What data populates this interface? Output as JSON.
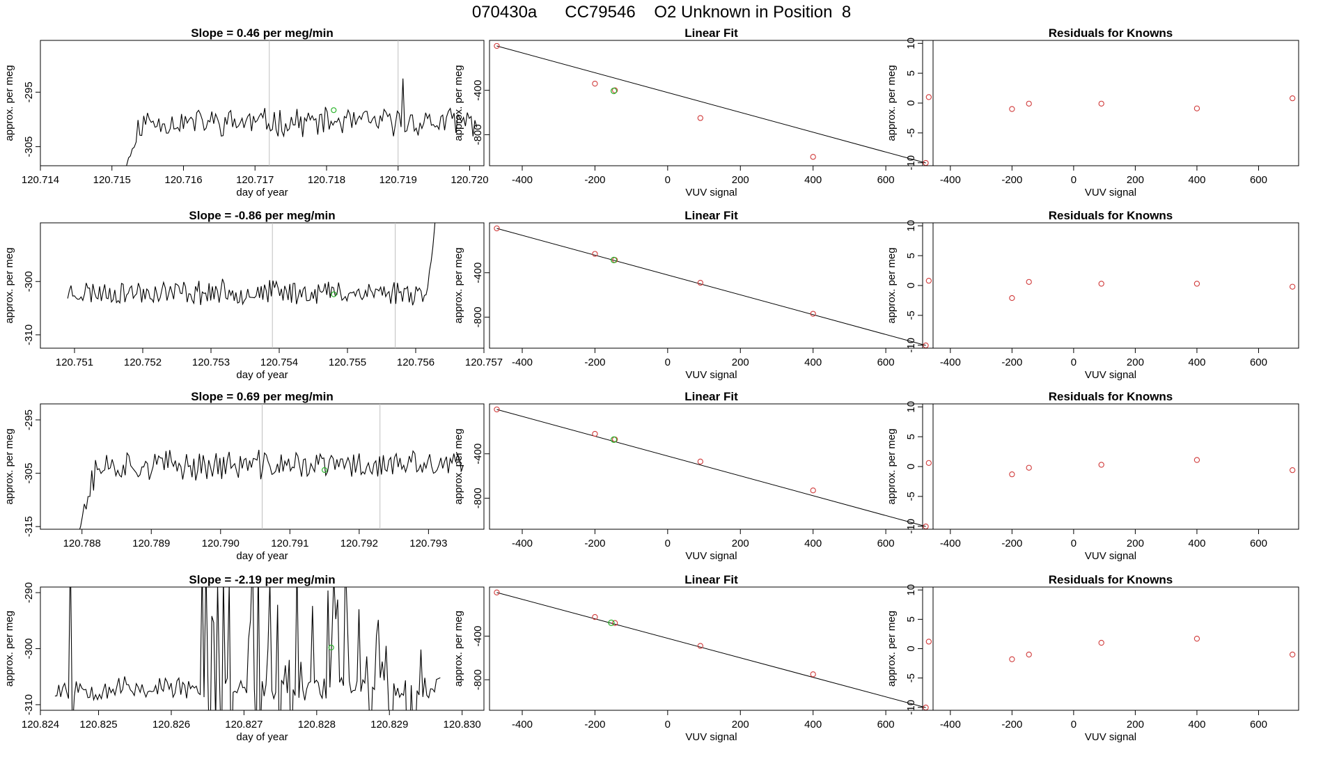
{
  "figure": {
    "title": "070430a      CC79546    O2 Unknown in Position  8",
    "colors": {
      "line": "#000000",
      "known": "#d03a3a",
      "unknown": "#2db52d",
      "vline": "#bfbfbf"
    }
  },
  "chart_data": [
    {
      "type": "line",
      "title": "Slope =  0.46  per meg/min",
      "xlabel": "day of year",
      "ylabel": "approx. per meg",
      "xlim": [
        120.714,
        120.7202
      ],
      "ylim": [
        -308.5,
        -285.5
      ],
      "xticks": [
        120.714,
        120.715,
        120.716,
        120.717,
        120.718,
        120.719,
        120.72
      ],
      "xtick_labels": [
        "120.714",
        "120.715",
        "120.716",
        "120.717",
        "120.718",
        "120.719",
        "120.720"
      ],
      "yticks": [
        -295,
        -305
      ],
      "vlines": [
        120.7172,
        120.719
      ],
      "series": {
        "start": 120.7151,
        "end": 120.7201,
        "n": 190,
        "base": -300.5,
        "noise": 2.2,
        "seed": 11,
        "ramp_from": -312,
        "ramp_len": 12,
        "spikes": [
          [
            150,
            -292.5
          ]
        ]
      },
      "unknown_point": {
        "x": 120.7181,
        "y": -298.3
      }
    },
    {
      "type": "scatter",
      "title": "Linear Fit",
      "xlabel": "VUV signal",
      "ylabel": "approx. per meg",
      "xlim": [
        -490,
        730
      ],
      "ylim": [
        -1080,
        50
      ],
      "xticks": [
        -400,
        -200,
        0,
        200,
        400,
        600
      ],
      "yticks": [
        -400,
        -800
      ],
      "line": {
        "x1": -470,
        "y1": 0,
        "x2": 710,
        "y2": -1055
      },
      "knowns": [
        [
          -470,
          0
        ],
        [
          -200,
          -340
        ],
        [
          -145,
          -400
        ],
        [
          90,
          -650
        ],
        [
          400,
          -1000
        ],
        [
          710,
          -1055
        ]
      ],
      "unknown": [
        [
          -148,
          -405
        ]
      ]
    },
    {
      "type": "scatter",
      "title": "Residuals for Knowns",
      "xlabel": "VUV signal",
      "ylabel": "approx. per meg",
      "xlim": [
        -490,
        730
      ],
      "ylim": [
        -10.5,
        10.5
      ],
      "xticks": [
        -400,
        -200,
        0,
        200,
        400,
        600
      ],
      "yticks": [
        10,
        5,
        0,
        -5,
        -10
      ],
      "points": [
        [
          -470,
          1.0
        ],
        [
          -200,
          -1.0
        ],
        [
          -145,
          -0.1
        ],
        [
          90,
          -0.1
        ],
        [
          400,
          -0.9
        ],
        [
          710,
          0.8
        ]
      ]
    },
    {
      "type": "line",
      "title": "Slope =  -0.86  per meg/min",
      "xlabel": "day of year",
      "ylabel": "approx. per meg",
      "xlim": [
        120.7505,
        120.757
      ],
      "ylim": [
        -312.5,
        -289
      ],
      "xticks": [
        120.751,
        120.752,
        120.753,
        120.754,
        120.755,
        120.756,
        120.757
      ],
      "xtick_labels": [
        "120.751",
        "120.752",
        "120.753",
        "120.754",
        "120.755",
        "120.756",
        "120.757"
      ],
      "yticks": [
        -300,
        -310
      ],
      "vlines": [
        120.7539,
        120.7557
      ],
      "series": {
        "start": 120.7509,
        "end": 120.7563,
        "n": 220,
        "base": -302,
        "noise": 2.0,
        "seed": 23,
        "tail_to": -287,
        "tail_len": 8
      },
      "unknown_point": {
        "x": 120.7548,
        "y": -302.4
      }
    },
    {
      "type": "scatter",
      "title": "Linear Fit",
      "xlabel": "VUV signal",
      "ylabel": "approx. per meg",
      "xlim": [
        -490,
        730
      ],
      "ylim": [
        -1080,
        50
      ],
      "xticks": [
        -400,
        -200,
        0,
        200,
        400,
        600
      ],
      "yticks": [
        -400,
        -800
      ],
      "line": {
        "x1": -470,
        "y1": 0,
        "x2": 710,
        "y2": -1055
      },
      "knowns": [
        [
          -470,
          0
        ],
        [
          -200,
          -230
        ],
        [
          -145,
          -285
        ],
        [
          90,
          -490
        ],
        [
          400,
          -770
        ],
        [
          710,
          -1055
        ]
      ],
      "unknown": [
        [
          -148,
          -285
        ]
      ]
    },
    {
      "type": "scatter",
      "title": "Residuals for Knowns",
      "xlabel": "VUV signal",
      "ylabel": "approx. per meg",
      "xlim": [
        -490,
        730
      ],
      "ylim": [
        -10.5,
        10.5
      ],
      "xticks": [
        -400,
        -200,
        0,
        200,
        400,
        600
      ],
      "yticks": [
        10,
        5,
        0,
        -5,
        -10
      ],
      "points": [
        [
          -470,
          0.8
        ],
        [
          -200,
          -2.1
        ],
        [
          -145,
          0.6
        ],
        [
          90,
          0.3
        ],
        [
          400,
          0.3
        ],
        [
          710,
          -0.2
        ]
      ]
    },
    {
      "type": "line",
      "title": "Slope =  0.69  per meg/min",
      "xlabel": "day of year",
      "ylabel": "approx. per meg",
      "xlim": [
        120.7874,
        120.7938
      ],
      "ylim": [
        -315.5,
        -292
      ],
      "xticks": [
        120.788,
        120.789,
        120.79,
        120.791,
        120.792,
        120.793
      ],
      "xtick_labels": [
        "120.788",
        "120.789",
        "120.790",
        "120.791",
        "120.792",
        "120.793"
      ],
      "yticks": [
        -295,
        -305,
        -315
      ],
      "vlines": [
        120.7906,
        120.7923
      ],
      "series": {
        "start": 120.7879,
        "end": 120.7935,
        "n": 210,
        "base": -303.5,
        "noise": 2.4,
        "seed": 37,
        "ramp_from": -318,
        "ramp_len": 12,
        "spikes": [
          [
            150,
            -301.5
          ]
        ]
      },
      "unknown_point": {
        "x": 120.7915,
        "y": -304.4
      }
    },
    {
      "type": "scatter",
      "title": "Linear Fit",
      "xlabel": "VUV signal",
      "ylabel": "approx. per meg",
      "xlim": [
        -490,
        730
      ],
      "ylim": [
        -1080,
        50
      ],
      "xticks": [
        -400,
        -200,
        0,
        200,
        400,
        600
      ],
      "yticks": [
        -400,
        -800
      ],
      "line": {
        "x1": -470,
        "y1": 0,
        "x2": 710,
        "y2": -1055
      },
      "knowns": [
        [
          -470,
          0
        ],
        [
          -200,
          -220
        ],
        [
          -145,
          -270
        ],
        [
          90,
          -470
        ],
        [
          400,
          -730
        ],
        [
          710,
          -1055
        ]
      ],
      "unknown": [
        [
          -148,
          -272
        ]
      ]
    },
    {
      "type": "scatter",
      "title": "Residuals for Knowns",
      "xlabel": "VUV signal",
      "ylabel": "approx. per meg",
      "xlim": [
        -490,
        730
      ],
      "ylim": [
        -10.5,
        10.5
      ],
      "xticks": [
        -400,
        -200,
        0,
        200,
        400,
        600
      ],
      "yticks": [
        10,
        5,
        0,
        -5,
        -10
      ],
      "points": [
        [
          -470,
          0.6
        ],
        [
          -200,
          -1.3
        ],
        [
          -145,
          -0.2
        ],
        [
          90,
          0.3
        ],
        [
          400,
          1.1
        ],
        [
          710,
          -0.6
        ]
      ]
    },
    {
      "type": "line",
      "title": "Slope =  -2.19  per meg/min",
      "xlabel": "day of year",
      "ylabel": "approx. per meg",
      "xlim": [
        120.8242,
        120.8303
      ],
      "ylim": [
        -311,
        -289
      ],
      "xticks": [
        120.8242,
        120.825,
        120.826,
        120.827,
        120.828,
        120.829,
        120.83
      ],
      "xtick_labels": [
        "120.824",
        "120.825",
        "120.826",
        "120.827",
        "120.828",
        "120.829",
        "120.830"
      ],
      "yticks": [
        -290,
        -300,
        -310
      ],
      "vlines": [],
      "series": {
        "start": 120.8244,
        "end": 120.8297,
        "n": 200,
        "base": -307,
        "noise": 2.0,
        "seed": 53,
        "wild_from": 72,
        "wild_to": 190,
        "wild_amp": 40,
        "head_spike": [
          [
            8,
            -282
          ],
          [
            9,
            -315
          ]
        ]
      },
      "unknown_point": {
        "x": 120.8282,
        "y": -299.8
      }
    },
    {
      "type": "scatter",
      "title": "Linear Fit",
      "xlabel": "VUV signal",
      "ylabel": "approx. per meg",
      "xlim": [
        -490,
        730
      ],
      "ylim": [
        -1080,
        50
      ],
      "xticks": [
        -400,
        -200,
        0,
        200,
        400,
        600
      ],
      "yticks": [
        -400,
        -800
      ],
      "line": {
        "x1": -470,
        "y1": 0,
        "x2": 710,
        "y2": -1055
      },
      "knowns": [
        [
          -470,
          0
        ],
        [
          -200,
          -225
        ],
        [
          -145,
          -280
        ],
        [
          90,
          -490
        ],
        [
          400,
          -750
        ],
        [
          710,
          -1055
        ]
      ],
      "unknown": [
        [
          -155,
          -278
        ]
      ]
    },
    {
      "type": "scatter",
      "title": "Residuals for Knowns",
      "xlabel": "VUV signal",
      "ylabel": "approx. per meg",
      "xlim": [
        -490,
        730
      ],
      "ylim": [
        -10.5,
        10.5
      ],
      "xticks": [
        -400,
        -200,
        0,
        200,
        400,
        600
      ],
      "yticks": [
        10,
        5,
        0,
        -5,
        -10
      ],
      "points": [
        [
          -470,
          1.2
        ],
        [
          -200,
          -1.8
        ],
        [
          -145,
          -1.0
        ],
        [
          90,
          1.0
        ],
        [
          400,
          1.7
        ],
        [
          710,
          -1.0
        ]
      ]
    }
  ]
}
